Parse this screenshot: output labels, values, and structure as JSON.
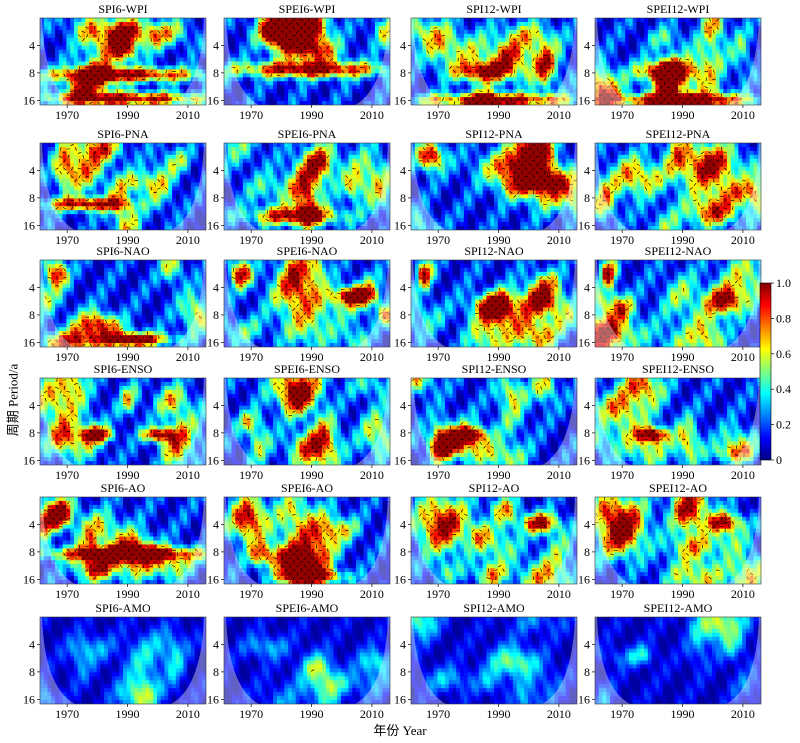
{
  "figure": {
    "ylabel": "周期 Period/a",
    "xlabel": "年份 Year"
  },
  "colorbar": {
    "min": 0,
    "max": 1,
    "ticks": [
      "0",
      "0.2",
      "0.4",
      "0.6",
      "0.8",
      "1.0"
    ],
    "colors": [
      "#00007f",
      "#0000ff",
      "#007fff",
      "#00ffff",
      "#7fff7f",
      "#ffff00",
      "#ff7f00",
      "#ff0000",
      "#7f0000"
    ]
  },
  "chart_data": {
    "type": "heatmap",
    "description_grid": "wavelet coherence panels, 6 rows x 4 columns",
    "x_ticks": [
      "1970",
      "1990",
      "2010"
    ],
    "x_range": [
      1961,
      2016
    ],
    "y_ticks": [
      "4",
      "8",
      "16"
    ],
    "y_scale": "log2",
    "y_range": [
      2,
      18
    ],
    "panels": [
      {
        "title": "SPI6-WPI",
        "high_coherence_regions": [
          {
            "year": [
              1983,
              1995
            ],
            "period": [
              2,
              4
            ]
          },
          {
            "year": [
              1963,
              2016
            ],
            "period": [
              7,
              10
            ]
          },
          {
            "year": [
              1963,
              2016
            ],
            "period": [
              14,
              17
            ]
          }
        ]
      },
      {
        "title": "SPEI6-WPI",
        "high_coherence_regions": [
          {
            "year": [
              1963,
              2016
            ],
            "period": [
              6,
              9
            ]
          },
          {
            "year": [
              1975,
              1990
            ],
            "period": [
              2,
              4
            ]
          }
        ]
      },
      {
        "title": "SPI12-WPI",
        "high_coherence_regions": [
          {
            "year": [
              1975,
              1995
            ],
            "period": [
              6,
              10
            ]
          },
          {
            "year": [
              1963,
              2016
            ],
            "period": [
              15,
              17
            ]
          }
        ]
      },
      {
        "title": "SPEI12-WPI",
        "high_coherence_regions": [
          {
            "year": [
              1975,
              1995
            ],
            "period": [
              6,
              10
            ]
          },
          {
            "year": [
              1963,
              2016
            ],
            "period": [
              15,
              17
            ]
          }
        ]
      },
      {
        "title": "SPI6-PNA",
        "high_coherence_regions": [
          {
            "year": [
              1963,
              1990
            ],
            "period": [
              8,
              11
            ]
          }
        ]
      },
      {
        "title": "SPEI6-PNA",
        "high_coherence_regions": [
          {
            "year": [
              1970,
              2000
            ],
            "period": [
              10,
              16
            ]
          }
        ]
      },
      {
        "title": "SPI12-PNA",
        "high_coherence_regions": [
          {
            "year": [
              1993,
              2008
            ],
            "period": [
              2,
              6
            ]
          },
          {
            "year": [
              1963,
              1972
            ],
            "period": [
              2,
              4
            ]
          }
        ]
      },
      {
        "title": "SPEI12-PNA",
        "high_coherence_regions": [
          {
            "year": [
              1990,
              2008
            ],
            "period": [
              2,
              6
            ]
          }
        ]
      },
      {
        "title": "SPI6-NAO",
        "high_coherence_regions": [
          {
            "year": [
              1963,
              1970
            ],
            "period": [
              2,
              4
            ]
          },
          {
            "year": [
              1980,
              2005
            ],
            "period": [
              13,
              17
            ]
          }
        ]
      },
      {
        "title": "SPEI6-NAO",
        "high_coherence_regions": [
          {
            "year": [
              1963,
              1970
            ],
            "period": [
              2,
              4
            ]
          },
          {
            "year": [
              1998,
              2010
            ],
            "period": [
              4,
              6
            ]
          }
        ]
      },
      {
        "title": "SPI12-NAO",
        "high_coherence_regions": [
          {
            "year": [
              1963,
              1968
            ],
            "period": [
              2,
              4
            ]
          },
          {
            "year": [
              1998,
              2010
            ],
            "period": [
              4,
              8
            ]
          }
        ]
      },
      {
        "title": "SPEI12-NAO",
        "high_coherence_regions": [
          {
            "year": [
              1963,
              1968
            ],
            "period": [
              2,
              4
            ]
          },
          {
            "year": [
              1998,
              2010
            ],
            "period": [
              4,
              8
            ]
          }
        ]
      },
      {
        "title": "SPI6-ENSO",
        "high_coherence_regions": [
          {
            "year": [
              1975,
              1985
            ],
            "period": [
              7,
              10
            ]
          },
          {
            "year": [
              1995,
              2005
            ],
            "period": [
              7,
              10
            ]
          }
        ]
      },
      {
        "title": "SPEI6-ENSO",
        "high_coherence_regions": [
          {
            "year": [
              1980,
              1990
            ],
            "period": [
              2,
              5
            ]
          }
        ]
      },
      {
        "title": "SPI12-ENSO",
        "high_coherence_regions": [
          {
            "year": [
              1975,
              1985
            ],
            "period": [
              7,
              10
            ]
          }
        ]
      },
      {
        "title": "SPEI12-ENSO",
        "high_coherence_regions": [
          {
            "year": [
              1975,
              1985
            ],
            "period": [
              7,
              10
            ]
          }
        ]
      },
      {
        "title": "SPI6-AO",
        "high_coherence_regions": [
          {
            "year": [
              1963,
              1972
            ],
            "period": [
              2,
              4
            ]
          },
          {
            "year": [
              1963,
              2016
            ],
            "period": [
              7,
              10
            ]
          }
        ]
      },
      {
        "title": "SPEI6-AO",
        "high_coherence_regions": [
          {
            "year": [
              1963,
              1975
            ],
            "period": [
              2,
              6
            ]
          },
          {
            "year": [
              1980,
              2000
            ],
            "period": [
              13,
              17
            ]
          }
        ]
      },
      {
        "title": "SPI12-AO",
        "high_coherence_regions": [
          {
            "year": [
              1963,
              1980
            ],
            "period": [
              2,
              8
            ]
          },
          {
            "year": [
              1998,
              2010
            ],
            "period": [
              3,
              5
            ]
          }
        ]
      },
      {
        "title": "SPEI12-AO",
        "high_coherence_regions": [
          {
            "year": [
              1963,
              1978
            ],
            "period": [
              2,
              8
            ]
          },
          {
            "year": [
              1998,
              2010
            ],
            "period": [
              3,
              5
            ]
          }
        ]
      },
      {
        "title": "SPI6-AMO",
        "high_coherence_regions": []
      },
      {
        "title": "SPEI6-AMO",
        "high_coherence_regions": []
      },
      {
        "title": "SPI12-AMO",
        "high_coherence_regions": []
      },
      {
        "title": "SPEI12-AMO",
        "high_coherence_regions": []
      }
    ]
  }
}
